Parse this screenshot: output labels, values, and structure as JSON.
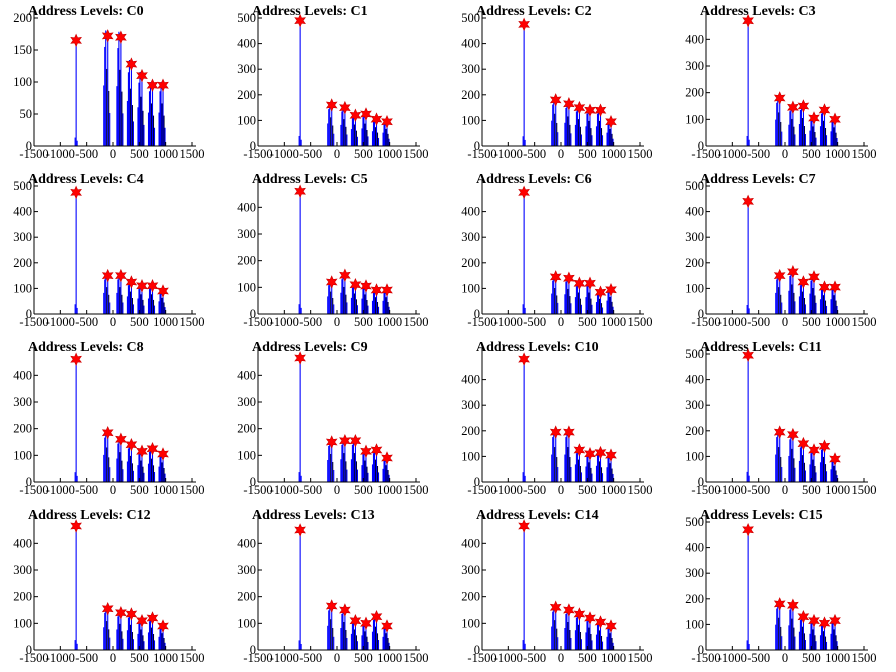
{
  "figure": {
    "grid_columns": 4,
    "colors": {
      "histogram": "#0000ff",
      "histogram_dark": "#000033",
      "peak_marker": "#ff0000",
      "axis": "#000000"
    }
  },
  "chart_data": [
    {
      "type": "bar",
      "title": "Address Levels: C0",
      "xlim": [
        -1500,
        1500
      ],
      "ylim": [
        0,
        200
      ],
      "xticks": [
        -1500,
        -1000,
        -500,
        0,
        500,
        1000,
        1500
      ],
      "yticks": [
        0,
        50,
        100,
        150,
        200
      ],
      "peaks": [
        {
          "x": -700,
          "y": 165
        },
        {
          "x": -100,
          "y": 172
        },
        {
          "x": 150,
          "y": 170
        },
        {
          "x": 350,
          "y": 128
        },
        {
          "x": 550,
          "y": 110
        },
        {
          "x": 750,
          "y": 95
        },
        {
          "x": 950,
          "y": 95
        }
      ]
    },
    {
      "type": "bar",
      "title": "Address Levels: C1",
      "xlim": [
        -1500,
        1500
      ],
      "ylim": [
        0,
        500
      ],
      "xticks": [
        -1500,
        -1000,
        -500,
        0,
        500,
        1000,
        1500
      ],
      "yticks": [
        0,
        100,
        200,
        300,
        400,
        500
      ],
      "peaks": [
        {
          "x": -700,
          "y": 490
        },
        {
          "x": -100,
          "y": 160
        },
        {
          "x": 150,
          "y": 150
        },
        {
          "x": 350,
          "y": 120
        },
        {
          "x": 550,
          "y": 125
        },
        {
          "x": 750,
          "y": 105
        },
        {
          "x": 950,
          "y": 95
        }
      ]
    },
    {
      "type": "bar",
      "title": "Address Levels: C2",
      "xlim": [
        -1500,
        1500
      ],
      "ylim": [
        0,
        500
      ],
      "xticks": [
        -1500,
        -1000,
        -500,
        0,
        500,
        1000,
        1500
      ],
      "yticks": [
        0,
        100,
        200,
        300,
        400,
        500
      ],
      "peaks": [
        {
          "x": -700,
          "y": 475
        },
        {
          "x": -100,
          "y": 180
        },
        {
          "x": 150,
          "y": 165
        },
        {
          "x": 350,
          "y": 150
        },
        {
          "x": 550,
          "y": 140
        },
        {
          "x": 750,
          "y": 140
        },
        {
          "x": 950,
          "y": 95
        }
      ]
    },
    {
      "type": "bar",
      "title": "Address Levels: C3",
      "xlim": [
        -1500,
        1500
      ],
      "ylim": [
        0,
        480
      ],
      "xticks": [
        -1500,
        -1000,
        -500,
        0,
        500,
        1000,
        1500
      ],
      "yticks": [
        0,
        100,
        200,
        300,
        400
      ],
      "peaks": [
        {
          "x": -700,
          "y": 470
        },
        {
          "x": -100,
          "y": 180
        },
        {
          "x": 150,
          "y": 145
        },
        {
          "x": 350,
          "y": 150
        },
        {
          "x": 550,
          "y": 105
        },
        {
          "x": 750,
          "y": 135
        },
        {
          "x": 950,
          "y": 100
        }
      ]
    },
    {
      "type": "bar",
      "title": "Address Levels: C4",
      "xlim": [
        -1500,
        1500
      ],
      "ylim": [
        0,
        500
      ],
      "xticks": [
        -1500,
        -1000,
        -500,
        0,
        500,
        1000,
        1500
      ],
      "yticks": [
        0,
        100,
        200,
        300,
        400,
        500
      ],
      "peaks": [
        {
          "x": -700,
          "y": 475
        },
        {
          "x": -100,
          "y": 150
        },
        {
          "x": 150,
          "y": 150
        },
        {
          "x": 350,
          "y": 125
        },
        {
          "x": 550,
          "y": 110
        },
        {
          "x": 750,
          "y": 110
        },
        {
          "x": 950,
          "y": 90
        }
      ]
    },
    {
      "type": "bar",
      "title": "Address Levels: C5",
      "xlim": [
        -1500,
        1500
      ],
      "ylim": [
        0,
        480
      ],
      "xticks": [
        -1500,
        -1000,
        -500,
        0,
        500,
        1000,
        1500
      ],
      "yticks": [
        0,
        100,
        200,
        300,
        400
      ],
      "peaks": [
        {
          "x": -700,
          "y": 460
        },
        {
          "x": -100,
          "y": 120
        },
        {
          "x": 150,
          "y": 145
        },
        {
          "x": 350,
          "y": 110
        },
        {
          "x": 550,
          "y": 105
        },
        {
          "x": 750,
          "y": 90
        },
        {
          "x": 950,
          "y": 90
        }
      ]
    },
    {
      "type": "bar",
      "title": "Address Levels: C6",
      "xlim": [
        -1500,
        1500
      ],
      "ylim": [
        0,
        500
      ],
      "xticks": [
        -1500,
        -1000,
        -500,
        0,
        500,
        1000,
        1500
      ],
      "yticks": [
        0,
        100,
        200,
        300,
        400
      ],
      "peaks": [
        {
          "x": -700,
          "y": 475
        },
        {
          "x": -100,
          "y": 145
        },
        {
          "x": 150,
          "y": 140
        },
        {
          "x": 350,
          "y": 120
        },
        {
          "x": 550,
          "y": 120
        },
        {
          "x": 750,
          "y": 85
        },
        {
          "x": 950,
          "y": 95
        }
      ]
    },
    {
      "type": "bar",
      "title": "Address Levels: C7",
      "xlim": [
        -1500,
        1500
      ],
      "ylim": [
        0,
        500
      ],
      "xticks": [
        -1500,
        -1000,
        -500,
        0,
        500,
        1000,
        1500
      ],
      "yticks": [
        0,
        100,
        200,
        300,
        400,
        500
      ],
      "peaks": [
        {
          "x": -700,
          "y": 440
        },
        {
          "x": -100,
          "y": 150
        },
        {
          "x": 150,
          "y": 165
        },
        {
          "x": 350,
          "y": 125
        },
        {
          "x": 550,
          "y": 145
        },
        {
          "x": 750,
          "y": 105
        },
        {
          "x": 950,
          "y": 105
        }
      ]
    },
    {
      "type": "bar",
      "title": "Address Levels: C8",
      "xlim": [
        -1500,
        1500
      ],
      "ylim": [
        0,
        480
      ],
      "xticks": [
        -1500,
        -1000,
        -500,
        0,
        500,
        1000,
        1500
      ],
      "yticks": [
        0,
        100,
        200,
        300,
        400
      ],
      "peaks": [
        {
          "x": -700,
          "y": 460
        },
        {
          "x": -100,
          "y": 185
        },
        {
          "x": 150,
          "y": 160
        },
        {
          "x": 350,
          "y": 140
        },
        {
          "x": 550,
          "y": 115
        },
        {
          "x": 750,
          "y": 125
        },
        {
          "x": 950,
          "y": 105
        }
      ]
    },
    {
      "type": "bar",
      "title": "Address Levels: C9",
      "xlim": [
        -1500,
        1500
      ],
      "ylim": [
        0,
        480
      ],
      "xticks": [
        -1500,
        -1000,
        -500,
        0,
        500,
        1000,
        1500
      ],
      "yticks": [
        0,
        100,
        200,
        300,
        400
      ],
      "peaks": [
        {
          "x": -700,
          "y": 465
        },
        {
          "x": -100,
          "y": 150
        },
        {
          "x": 150,
          "y": 155
        },
        {
          "x": 350,
          "y": 155
        },
        {
          "x": 550,
          "y": 115
        },
        {
          "x": 750,
          "y": 120
        },
        {
          "x": 950,
          "y": 90
        }
      ]
    },
    {
      "type": "bar",
      "title": "Address Levels: C10",
      "xlim": [
        -1500,
        1500
      ],
      "ylim": [
        0,
        500
      ],
      "xticks": [
        -1500,
        -1000,
        -500,
        0,
        500,
        1000,
        1500
      ],
      "yticks": [
        0,
        100,
        200,
        300,
        400
      ],
      "peaks": [
        {
          "x": -700,
          "y": 480
        },
        {
          "x": -100,
          "y": 195
        },
        {
          "x": 150,
          "y": 195
        },
        {
          "x": 350,
          "y": 125
        },
        {
          "x": 550,
          "y": 110
        },
        {
          "x": 750,
          "y": 115
        },
        {
          "x": 950,
          "y": 105
        }
      ]
    },
    {
      "type": "bar",
      "title": "Address Levels: C11",
      "xlim": [
        -1500,
        1500
      ],
      "ylim": [
        0,
        500
      ],
      "xticks": [
        -1500,
        -1000,
        -500,
        0,
        500,
        1000,
        1500
      ],
      "yticks": [
        0,
        100,
        200,
        300,
        400,
        500
      ],
      "peaks": [
        {
          "x": -700,
          "y": 495
        },
        {
          "x": -100,
          "y": 195
        },
        {
          "x": 150,
          "y": 185
        },
        {
          "x": 350,
          "y": 150
        },
        {
          "x": 550,
          "y": 125
        },
        {
          "x": 750,
          "y": 140
        },
        {
          "x": 950,
          "y": 90
        }
      ]
    },
    {
      "type": "bar",
      "title": "Address Levels: C12",
      "xlim": [
        -1500,
        1500
      ],
      "ylim": [
        0,
        480
      ],
      "xticks": [
        -1500,
        -1000,
        -500,
        0,
        500,
        1000,
        1500
      ],
      "yticks": [
        0,
        100,
        200,
        300,
        400
      ],
      "peaks": [
        {
          "x": -700,
          "y": 465
        },
        {
          "x": -100,
          "y": 155
        },
        {
          "x": 150,
          "y": 140
        },
        {
          "x": 350,
          "y": 135
        },
        {
          "x": 550,
          "y": 110
        },
        {
          "x": 750,
          "y": 120
        },
        {
          "x": 950,
          "y": 90
        }
      ]
    },
    {
      "type": "bar",
      "title": "Address Levels: C13",
      "xlim": [
        -1500,
        1500
      ],
      "ylim": [
        0,
        480
      ],
      "xticks": [
        -1500,
        -1000,
        -500,
        0,
        500,
        1000,
        1500
      ],
      "yticks": [
        0,
        100,
        200,
        300,
        400
      ],
      "peaks": [
        {
          "x": -700,
          "y": 450
        },
        {
          "x": -100,
          "y": 165
        },
        {
          "x": 150,
          "y": 150
        },
        {
          "x": 350,
          "y": 110
        },
        {
          "x": 550,
          "y": 100
        },
        {
          "x": 750,
          "y": 125
        },
        {
          "x": 950,
          "y": 90
        }
      ]
    },
    {
      "type": "bar",
      "title": "Address Levels: C14",
      "xlim": [
        -1500,
        1500
      ],
      "ylim": [
        0,
        480
      ],
      "xticks": [
        -1500,
        -1000,
        -500,
        0,
        500,
        1000,
        1500
      ],
      "yticks": [
        0,
        100,
        200,
        300,
        400
      ],
      "peaks": [
        {
          "x": -700,
          "y": 465
        },
        {
          "x": -100,
          "y": 160
        },
        {
          "x": 150,
          "y": 150
        },
        {
          "x": 350,
          "y": 135
        },
        {
          "x": 550,
          "y": 120
        },
        {
          "x": 750,
          "y": 105
        },
        {
          "x": 950,
          "y": 90
        }
      ]
    },
    {
      "type": "bar",
      "title": "Address Levels: C15",
      "xlim": [
        -1500,
        1500
      ],
      "ylim": [
        0,
        500
      ],
      "xticks": [
        -1500,
        -1000,
        -500,
        0,
        500,
        1000,
        1500
      ],
      "yticks": [
        0,
        100,
        200,
        300,
        400,
        500
      ],
      "peaks": [
        {
          "x": -700,
          "y": 470
        },
        {
          "x": -100,
          "y": 180
        },
        {
          "x": 150,
          "y": 175
        },
        {
          "x": 350,
          "y": 130
        },
        {
          "x": 550,
          "y": 115
        },
        {
          "x": 750,
          "y": 105
        },
        {
          "x": 950,
          "y": 115
        }
      ]
    }
  ]
}
